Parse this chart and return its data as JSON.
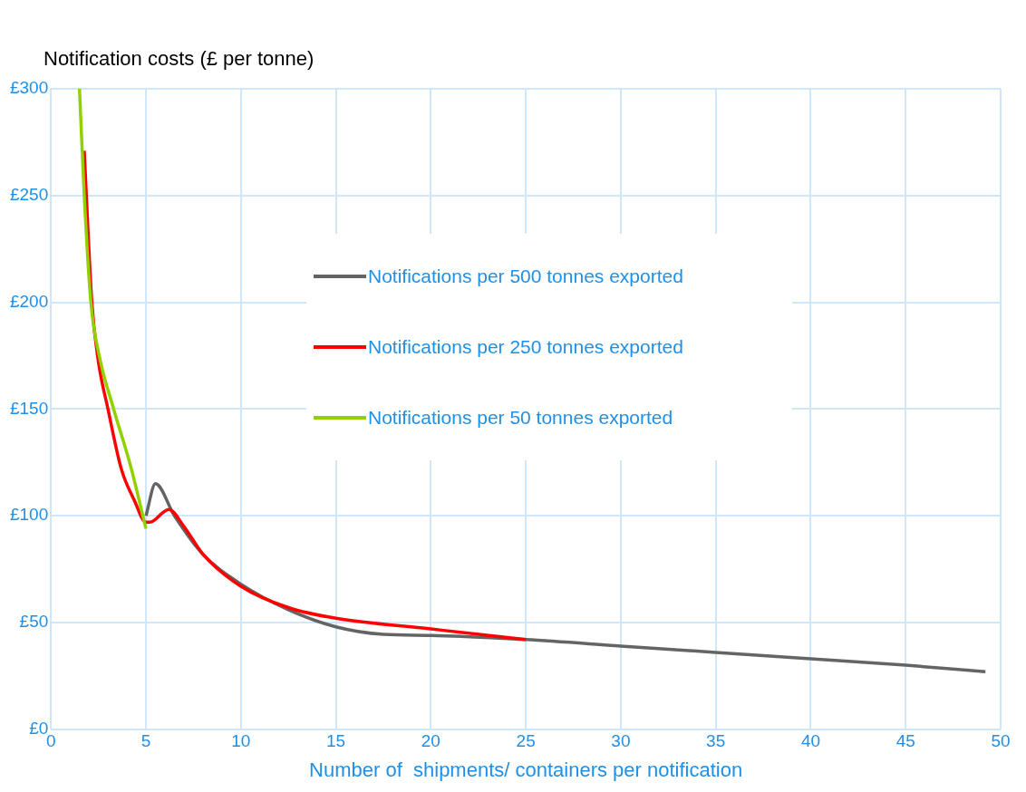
{
  "chart_data": {
    "type": "line",
    "title": "Notification costs (£ per tonne)",
    "xlabel": "Number of  shipments/ containers per notification",
    "xlim": [
      0,
      50
    ],
    "xticks": [
      0,
      5,
      10,
      15,
      20,
      25,
      30,
      35,
      40,
      45,
      50
    ],
    "ylim": [
      0,
      300
    ],
    "yticks": [
      {
        "value": 0,
        "label": "£0"
      },
      {
        "value": 50,
        "label": "£50"
      },
      {
        "value": 100,
        "label": "£100"
      },
      {
        "value": 150,
        "label": "£150"
      },
      {
        "value": 200,
        "label": "£200"
      },
      {
        "value": 250,
        "label": "£250"
      },
      {
        "value": 300,
        "label": "£300"
      }
    ],
    "grid": true,
    "legend": "top",
    "marker": "none",
    "line_style": "solid",
    "series": [
      {
        "name": "Notifications per 500 tonnes exported",
        "color": "#646464",
        "x": [
          5,
          5.5,
          6.5,
          8,
          10,
          12.5,
          15,
          17.5,
          20,
          25,
          30,
          35,
          40,
          45,
          49.2
        ],
        "values": [
          100,
          115,
          100,
          82,
          68,
          56,
          48,
          44.5,
          44,
          42,
          39,
          36,
          33,
          30,
          27
        ]
      },
      {
        "name": "Notifications per 250 tonnes exported",
        "color": "#ff0000",
        "x": [
          1.75,
          2.15,
          2.5,
          3,
          3.7,
          4.4,
          5,
          5.2,
          6.2,
          7,
          8,
          10,
          12.5,
          15,
          20,
          25
        ],
        "values": [
          271,
          200,
          172,
          150,
          122,
          107,
          97,
          97,
          103,
          95,
          82,
          67,
          57,
          52,
          47,
          42
        ]
      },
      {
        "name": "Notifications per 50 tonnes exported",
        "color": "#92d000",
        "x": [
          1.5,
          1.75,
          2.1,
          2.54,
          3.3,
          4.2,
          5
        ],
        "values": [
          300,
          250,
          200,
          175,
          150,
          123,
          94
        ]
      }
    ]
  }
}
